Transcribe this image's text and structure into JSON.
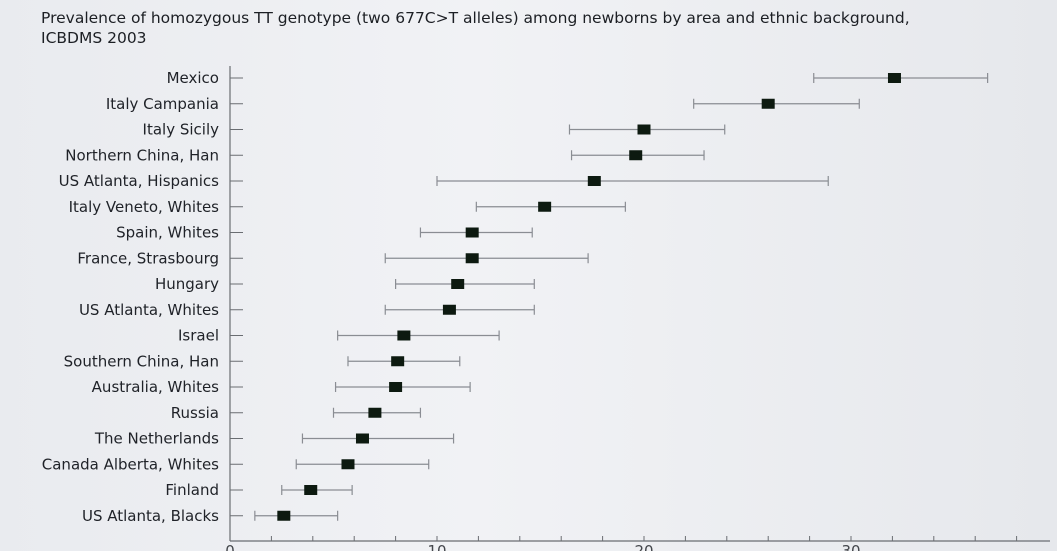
{
  "chart_data": {
    "type": "scatter",
    "title": "Prevalence of homozygous TT genotype (two 677C>T alleles) among newborns by area and ethnic background, ICBDMS 2003",
    "xlabel": "",
    "ylabel": "",
    "xlim": [
      0,
      38
    ],
    "x_ticks": [
      0,
      10,
      20,
      30
    ],
    "grid": false,
    "categories": [
      "Mexico",
      "Italy Campania",
      "Italy Sicily",
      "Northern China, Han",
      "US Atlanta, Hispanics",
      "Italy Veneto, Whites",
      "Spain, Whites",
      "France, Strasbourg",
      "Hungary",
      "US Atlanta, Whites",
      "Israel",
      "Southern China, Han",
      "Australia, Whites",
      "Russia",
      "The Netherlands",
      "Canada Alberta, Whites",
      "Finland",
      "US Atlanta, Blacks"
    ],
    "values": [
      32.1,
      26.0,
      20.0,
      19.6,
      17.6,
      15.2,
      11.7,
      11.7,
      11.0,
      10.6,
      8.4,
      8.1,
      8.0,
      7.0,
      6.4,
      5.7,
      3.9,
      2.6
    ],
    "ci_low": [
      28.2,
      22.4,
      16.4,
      16.5,
      10.0,
      11.9,
      9.2,
      7.5,
      8.0,
      7.5,
      5.2,
      5.7,
      5.1,
      5.0,
      3.5,
      3.2,
      2.5,
      1.2
    ],
    "ci_high": [
      36.6,
      30.4,
      23.9,
      22.9,
      28.9,
      19.1,
      14.6,
      17.3,
      14.7,
      14.7,
      13.0,
      11.1,
      11.6,
      9.2,
      10.8,
      9.6,
      5.9,
      5.2
    ]
  },
  "colors": {
    "marker": "#0d1a10",
    "error_bar": "#8a8d93",
    "axis": "#6a6d72",
    "text": "#1f2228"
  }
}
